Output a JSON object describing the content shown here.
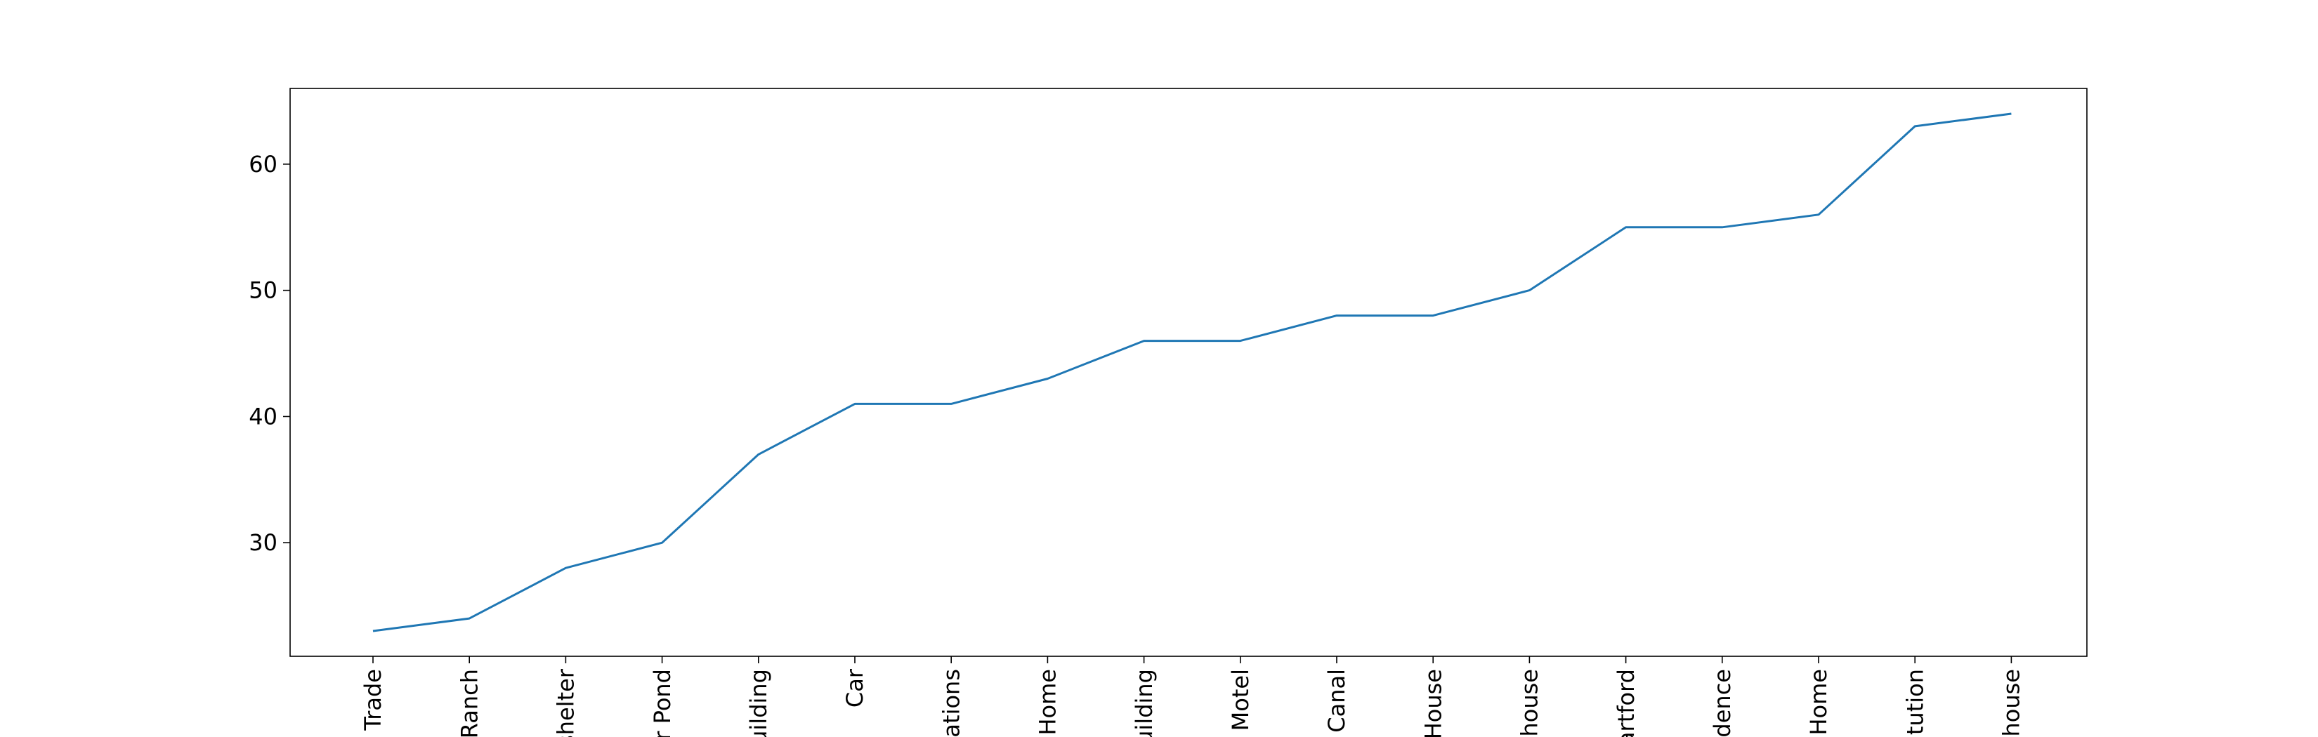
{
  "colors": {
    "line": "#1f77b4",
    "axes": "#000000",
    "background": "#ffffff"
  },
  "chart_data": {
    "type": "line",
    "title": "",
    "xlabel": "",
    "ylabel": "",
    "grid": false,
    "legend": "none",
    "ylim": [
      21,
      66
    ],
    "yticks": [
      30,
      40,
      50,
      60
    ],
    "categories": [
      ", Trade",
      "Ranch",
      "shelter",
      "or Pond",
      "uilding",
      "Car",
      "cations",
      "s Home",
      "uilding",
      "Motel",
      "r Canal",
      "House",
      "ehouse",
      "artford",
      "idence",
      ": Home",
      "citution",
      "r house"
    ],
    "series": [
      {
        "values": [
          23,
          24,
          28,
          30,
          37,
          41,
          41,
          43,
          46,
          46,
          48,
          48,
          50,
          55,
          55,
          56,
          63,
          64
        ]
      }
    ]
  }
}
